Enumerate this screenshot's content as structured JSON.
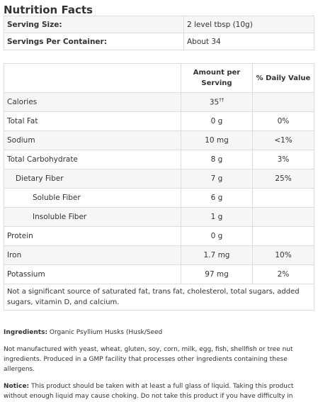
{
  "title": "Nutrition Facts",
  "serving": [
    [
      "Serving Size:",
      "2 level tbsp (10g)"
    ],
    [
      "Servings Per Container:",
      "About 34"
    ]
  ],
  "header": {
    "amount": "Amount per Serving",
    "daily_value": "% Daily Value"
  },
  "rows": [
    {
      "label": "Calories",
      "amount": "35",
      "mark": "††"
    },
    {
      "label": "Total Fat",
      "amount": "0 g",
      "dv": "0%"
    },
    {
      "label": "Sodium",
      "amount": "10 mg",
      "dv": "<1%"
    },
    {
      "label": "Total Carbohydrate",
      "amount": "8 g",
      "dv": "3%"
    },
    {
      "label": "Dietary Fiber",
      "amount": "7 g",
      "dv": "25%"
    },
    {
      "label": "Soluble Fiber",
      "amount": "6 g"
    },
    {
      "label": "Insoluble Fiber",
      "amount": "1 g"
    },
    {
      "label": "Protein",
      "amount": "0 g"
    },
    {
      "label": "Iron",
      "amount": "1.7 mg",
      "dv": "10%"
    },
    {
      "label": "Potassium",
      "amount": "97 mg",
      "dv": "2%"
    }
  ],
  "footnote": "Not a significant source of saturated fat, trans fat, cholesterol, total sugars, added sugars, vitamin D, and calcium.",
  "ingredients": {
    "label": "Ingredients:",
    "text": "Organic Psyllium Husks (Husk/Seed"
  },
  "allergens": "Not manufactured with yeast, wheat, gluten, soy, corn, milk, egg, fish, shellfish or tree nut ingredients. Produced in a GMP facility that processes other ingredients containing these allergens.",
  "notice": {
    "label": "Notice:",
    "text": "This product should be taken with at least a full glass of liquid. Taking this product without enough liquid may cause choking. Do not take this product if you have difficulty in swallowing."
  }
}
